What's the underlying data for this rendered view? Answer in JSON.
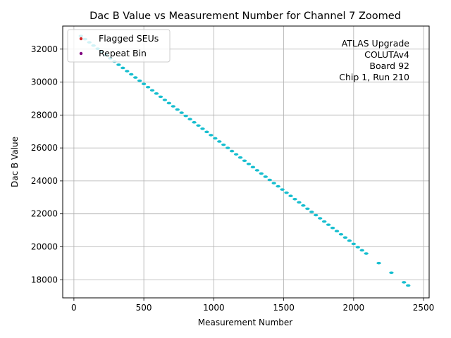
{
  "chart_data": {
    "type": "scatter",
    "title": "Dac B Value vs Measurement Number for Channel 7 Zoomed",
    "xlabel": "Measurement Number",
    "ylabel": "Dac B Value",
    "xlim": [
      -80,
      2540
    ],
    "ylim": [
      16900,
      33400
    ],
    "xticks": [
      0,
      500,
      1000,
      1500,
      2000,
      2500
    ],
    "yticks": [
      18000,
      20000,
      22000,
      24000,
      26000,
      28000,
      30000,
      32000
    ],
    "grid": true,
    "legend_position": "top-left",
    "annotation": [
      "ATLAS Upgrade",
      "COLUTAv4",
      "Board 92",
      "Chip 1, Run 210"
    ],
    "series": [
      {
        "color": "#17becf",
        "start": [
          50,
          32800
        ],
        "end": [
          2390,
          17650
        ],
        "step_x": 30,
        "gaps": [
          [
            2110,
            2180
          ],
          [
            2200,
            2250
          ],
          [
            2280,
            2340
          ]
        ]
      },
      {
        "name": "Flagged SEUs",
        "color": "#d62728",
        "x": [],
        "y": []
      },
      {
        "name": "Repeat Bin",
        "color": "#800080",
        "x": [],
        "y": []
      }
    ]
  }
}
